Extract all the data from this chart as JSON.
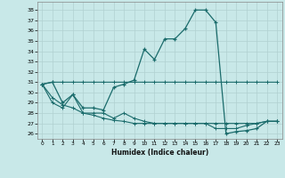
{
  "xlabel": "Humidex (Indice chaleur)",
  "background_color": "#c8e8e8",
  "line_color": "#1a6b6b",
  "grid_color": "#b0d0d0",
  "xlim": [
    -0.5,
    23.5
  ],
  "ylim": [
    25.5,
    38.8
  ],
  "yticks": [
    26,
    27,
    28,
    29,
    30,
    31,
    32,
    33,
    34,
    35,
    36,
    37,
    38
  ],
  "xticks": [
    0,
    1,
    2,
    3,
    4,
    5,
    6,
    7,
    8,
    9,
    10,
    11,
    12,
    13,
    14,
    15,
    16,
    17,
    18,
    19,
    20,
    21,
    22,
    23
  ],
  "series_main_x": [
    0,
    1,
    2,
    3,
    4,
    5,
    6,
    7,
    8,
    9,
    10,
    11,
    12,
    13,
    14,
    15,
    16,
    17,
    18,
    19,
    20,
    21,
    22,
    23
  ],
  "series_main_y": [
    30.8,
    31.0,
    29.0,
    29.8,
    28.5,
    28.5,
    28.3,
    30.5,
    30.8,
    31.2,
    34.2,
    33.2,
    35.2,
    35.2,
    36.2,
    38.0,
    38.0,
    36.8,
    26.0,
    26.2,
    26.3,
    26.5,
    27.2,
    27.2
  ],
  "series_flat_x": [
    0,
    1,
    2,
    3,
    4,
    5,
    6,
    7,
    8,
    9,
    10,
    11,
    12,
    13,
    14,
    15,
    16,
    17,
    18,
    19,
    20,
    21,
    22,
    23
  ],
  "series_flat_y": [
    30.8,
    31.0,
    31.0,
    31.0,
    31.0,
    31.0,
    31.0,
    31.0,
    31.0,
    31.0,
    31.0,
    31.0,
    31.0,
    31.0,
    31.0,
    31.0,
    31.0,
    31.0,
    31.0,
    31.0,
    31.0,
    31.0,
    31.0,
    31.0
  ],
  "series_mid_x": [
    0,
    1,
    2,
    3,
    4,
    5,
    6,
    7,
    8,
    9,
    10,
    11,
    12,
    13,
    14,
    15,
    16,
    17,
    18,
    19,
    20,
    21,
    22,
    23
  ],
  "series_mid_y": [
    30.8,
    29.5,
    28.8,
    28.5,
    28.0,
    27.8,
    27.5,
    27.3,
    27.2,
    27.0,
    27.0,
    27.0,
    27.0,
    27.0,
    27.0,
    27.0,
    27.0,
    27.0,
    27.0,
    27.0,
    27.0,
    27.0,
    27.2,
    27.2
  ],
  "series_low_x": [
    0,
    1,
    2,
    3,
    4,
    5,
    6,
    7,
    8,
    9,
    10,
    11,
    12,
    13,
    14,
    15,
    16,
    17,
    18,
    19,
    20,
    21,
    22,
    23
  ],
  "series_low_y": [
    30.8,
    29.0,
    28.5,
    29.8,
    28.0,
    28.0,
    28.0,
    27.5,
    28.0,
    27.5,
    27.2,
    27.0,
    27.0,
    27.0,
    27.0,
    27.0,
    27.0,
    26.5,
    26.5,
    26.5,
    26.8,
    27.0,
    27.2,
    27.2
  ]
}
